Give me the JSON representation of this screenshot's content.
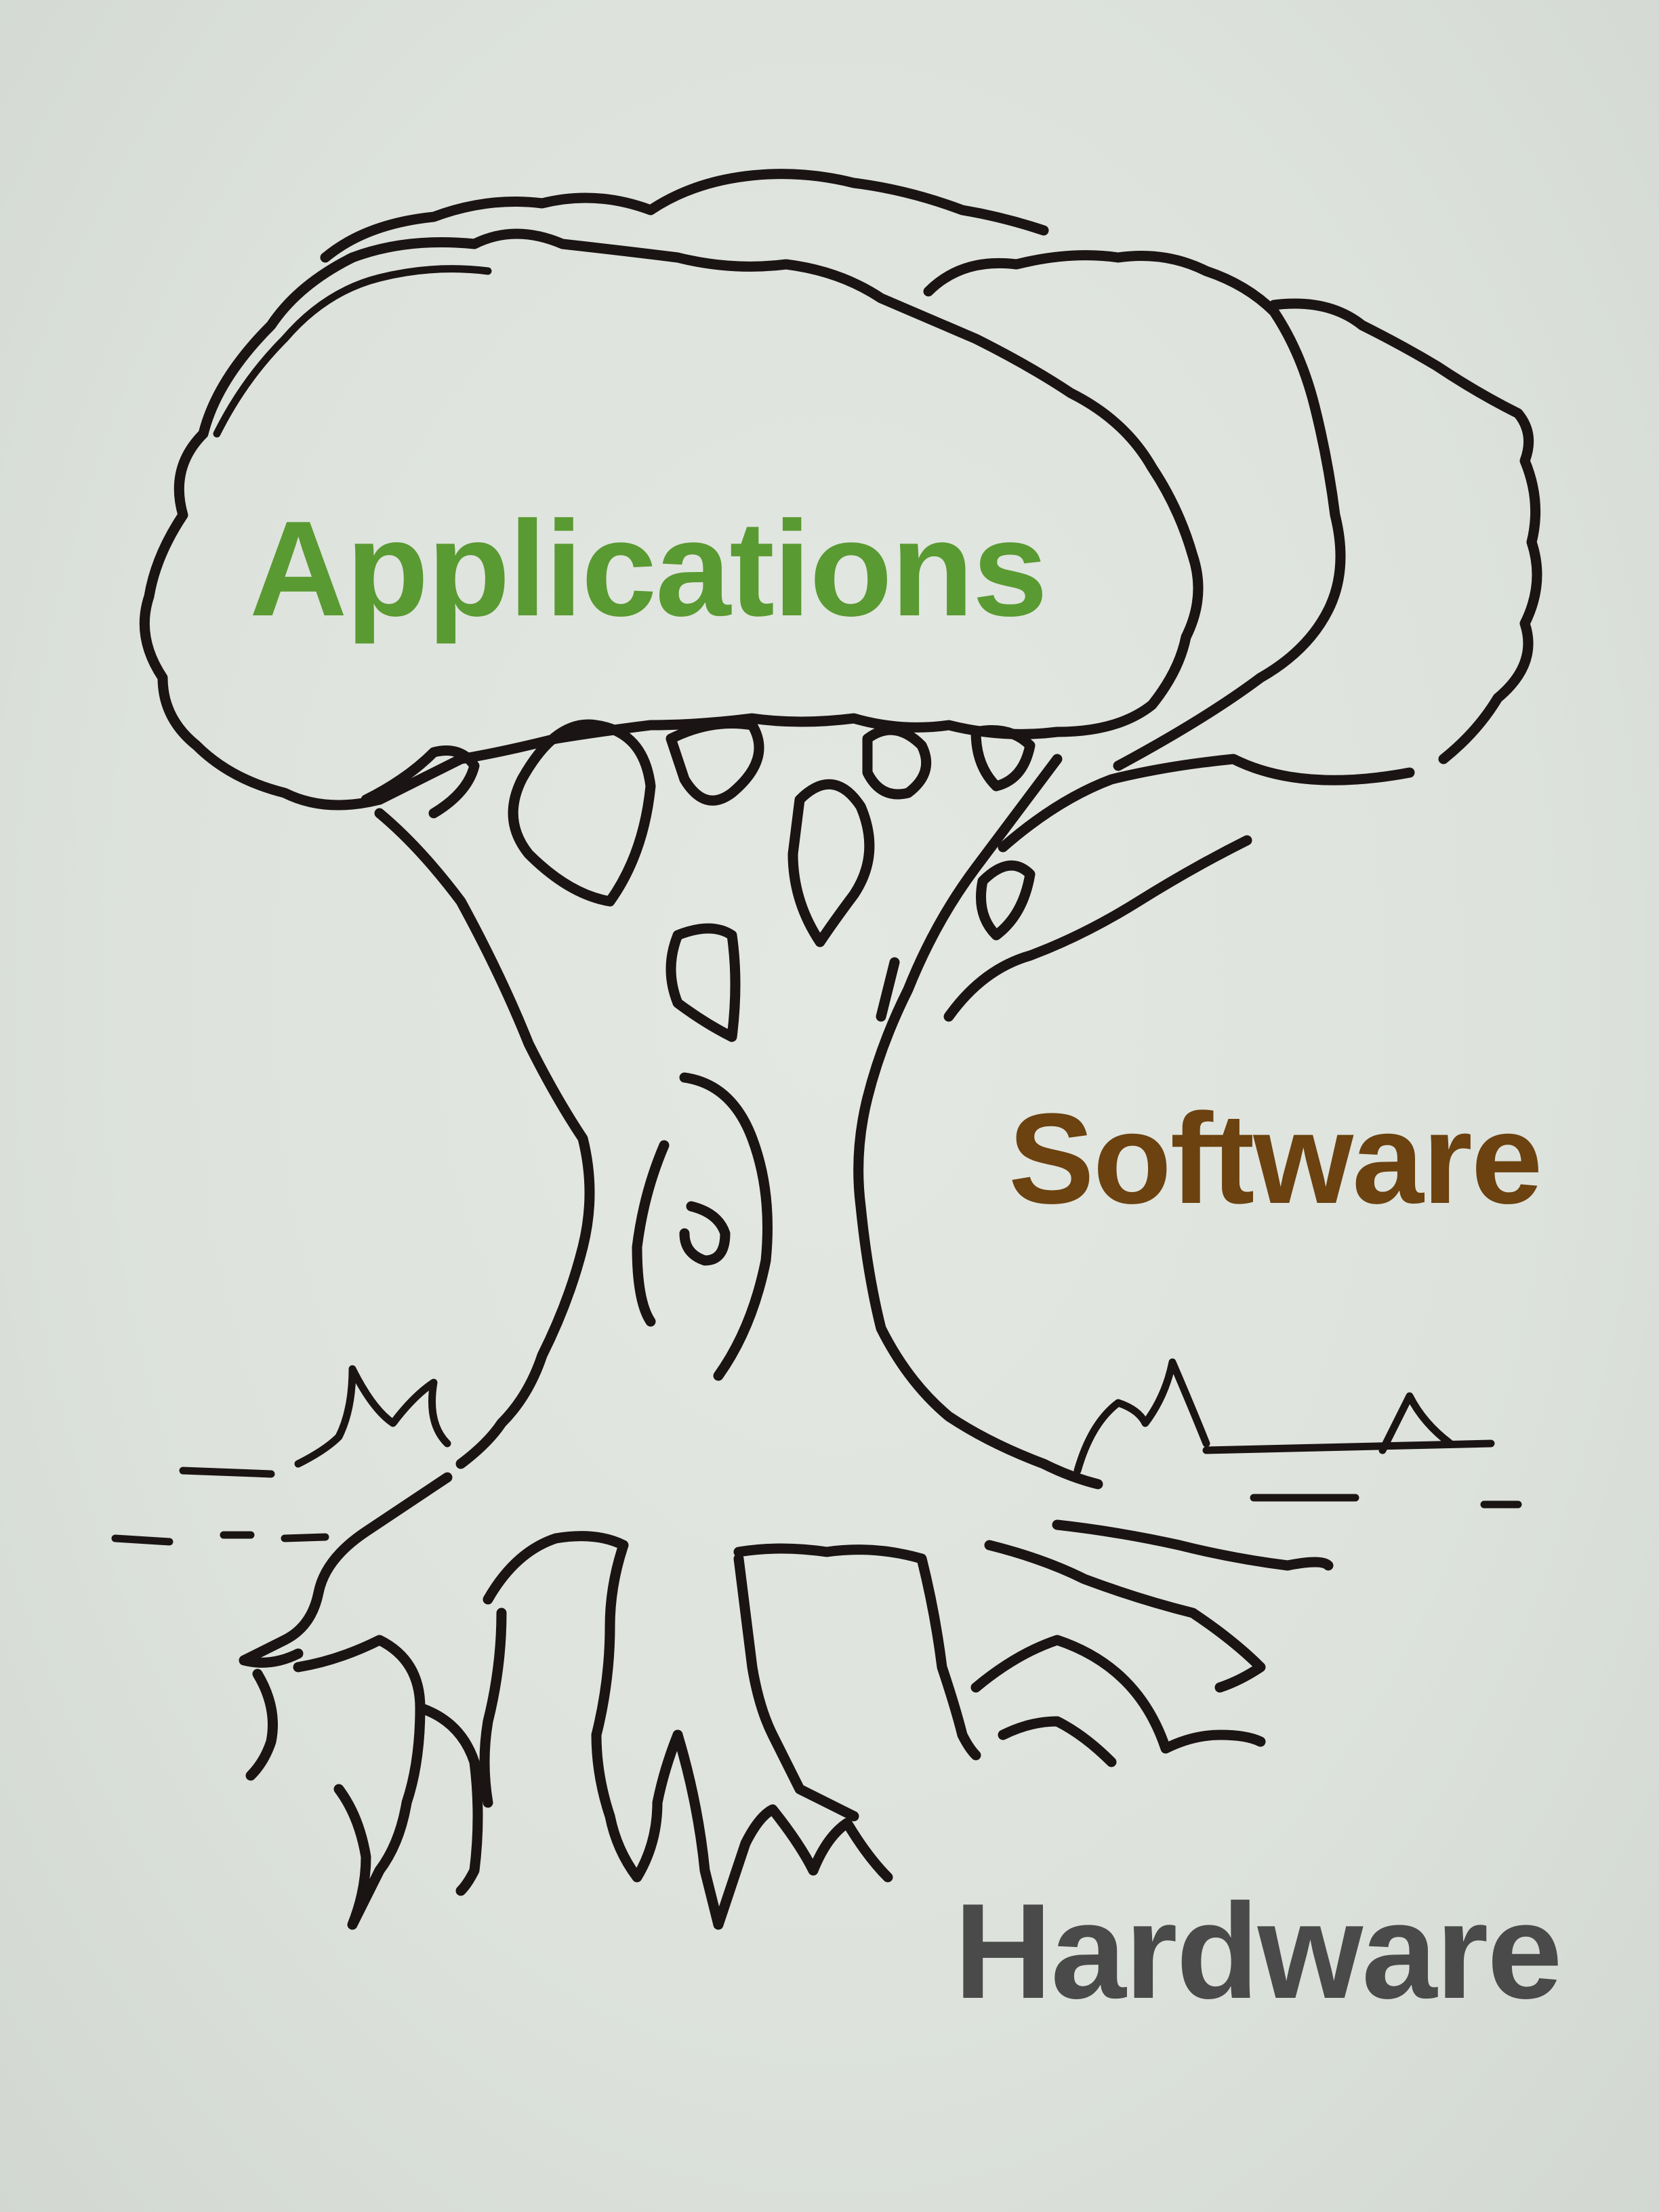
{
  "labels": {
    "applications": "Applications",
    "software": "Software",
    "hardware": "Hardware"
  },
  "colors": {
    "applications": "#5a9a32",
    "software": "#6b4210",
    "hardware": "#4a4a4a",
    "ink": "#1b1414",
    "paper": "#dde2dc"
  }
}
